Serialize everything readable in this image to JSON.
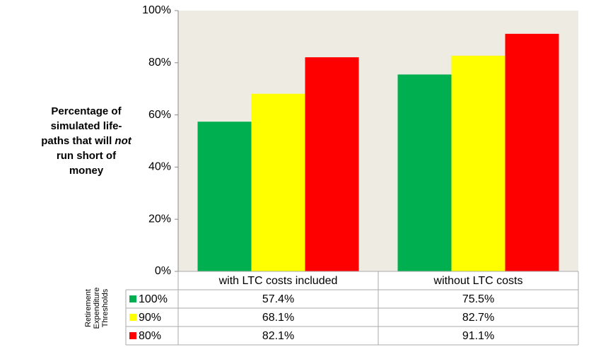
{
  "chart_data": {
    "type": "bar",
    "y_label": [
      "Percentage of",
      "simulated life-",
      [
        "paths that will",
        "not"
      ],
      "run short of",
      "money"
    ],
    "legend_title": [
      "Retirement",
      "Expenditure",
      "Thresholds"
    ],
    "categories": [
      "with LTC costs included",
      "without LTC costs"
    ],
    "series": [
      {
        "name": "100%",
        "color": "#00b050",
        "values": [
          57.4,
          75.5
        ],
        "value_labels": [
          "57.4%",
          "75.5%"
        ]
      },
      {
        "name": "90%",
        "color": "#ffff00",
        "values": [
          68.1,
          82.7
        ],
        "value_labels": [
          "68.1%",
          "82.7%"
        ]
      },
      {
        "name": "80%",
        "color": "#ff0000",
        "values": [
          82.1,
          91.1
        ],
        "value_labels": [
          "82.1%",
          "91.1%"
        ]
      }
    ],
    "ylim": [
      0,
      100
    ],
    "yticks": [
      {
        "value": 0,
        "label": "0%"
      },
      {
        "value": 20,
        "label": "20%"
      },
      {
        "value": 40,
        "label": "40%"
      },
      {
        "value": 60,
        "label": "60%"
      },
      {
        "value": 80,
        "label": "80%"
      },
      {
        "value": 100,
        "label": "100%"
      }
    ],
    "grid": false,
    "plot_background": "#eeebe2"
  }
}
